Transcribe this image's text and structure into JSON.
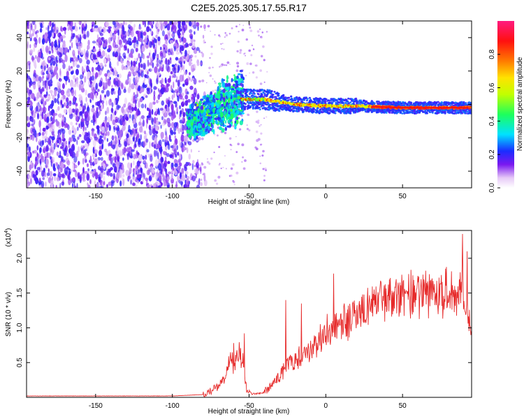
{
  "title": "C2E5.2025.305.17.55.R17",
  "colorbar_label": "Normalized spectral amplitude",
  "chart_data": [
    {
      "type": "heatmap",
      "name": "spectrogram",
      "xlabel": "Height of straight line (km)",
      "ylabel": "Frequency (Hz)",
      "xlim": [
        -195,
        95
      ],
      "ylim": [
        -50,
        50
      ],
      "xticks": [
        -150,
        -100,
        -50,
        0,
        50
      ],
      "yticks": [
        -40,
        -20,
        0,
        20,
        40
      ],
      "colorbar": {
        "label": "Normalized spectral amplitude",
        "range": [
          0,
          1
        ],
        "ticks": [
          0.0,
          0.2,
          0.4,
          0.6,
          0.8
        ]
      },
      "regions": [
        {
          "description": "broadband noise",
          "x": [
            -195,
            -83
          ],
          "freq": [
            -50,
            50
          ],
          "amplitude": 0.1
        },
        {
          "description": "onset scatter",
          "x": [
            -90,
            -55
          ],
          "freq_center": [
            -8,
            5
          ],
          "amplitude": 0.35
        },
        {
          "description": "signal track",
          "x": [
            -55,
            95
          ],
          "freq_center": [
            3,
            -2
          ],
          "amplitude": 0.85
        }
      ],
      "ridge": [
        {
          "x": -85,
          "freq": -10
        },
        {
          "x": -70,
          "freq": -2
        },
        {
          "x": -55,
          "freq": 3
        },
        {
          "x": -40,
          "freq": 3
        },
        {
          "x": -20,
          "freq": 0
        },
        {
          "x": 0,
          "freq": -1
        },
        {
          "x": 20,
          "freq": -1
        },
        {
          "x": 50,
          "freq": -2
        },
        {
          "x": 92,
          "freq": -2
        }
      ]
    },
    {
      "type": "line",
      "name": "snr",
      "xlabel": "Height of straight line (km)",
      "ylabel": "SNR (10 * v/v)",
      "yscale_label": "(x10",
      "yscale_exp": "4",
      "xlim": [
        -195,
        95
      ],
      "ylim": [
        0,
        2.4
      ],
      "xticks": [
        -150,
        -100,
        -50,
        0,
        50
      ],
      "yticks": [
        0.5,
        1.0,
        1.5,
        2.0
      ],
      "color": "#e62a2a",
      "envelope": [
        [
          -195,
          0.02
        ],
        [
          -100,
          0.02
        ],
        [
          -80,
          0.04
        ],
        [
          -72,
          0.12
        ],
        [
          -66,
          0.25
        ],
        [
          -62,
          0.55
        ],
        [
          -60,
          0.45
        ],
        [
          -57,
          0.65
        ],
        [
          -54,
          0.55
        ],
        [
          -52,
          0.15
        ],
        [
          -48,
          0.05
        ],
        [
          -42,
          0.06
        ],
        [
          -38,
          0.1
        ],
        [
          -34,
          0.22
        ],
        [
          -30,
          0.3
        ],
        [
          -26,
          0.45
        ],
        [
          -22,
          0.5
        ],
        [
          -18,
          0.55
        ],
        [
          -14,
          0.6
        ],
        [
          -10,
          0.68
        ],
        [
          -6,
          0.78
        ],
        [
          -2,
          0.88
        ],
        [
          2,
          0.93
        ],
        [
          6,
          0.98
        ],
        [
          10,
          1.05
        ],
        [
          14,
          1.1
        ],
        [
          18,
          1.15
        ],
        [
          22,
          1.22
        ],
        [
          26,
          1.3
        ],
        [
          30,
          1.35
        ],
        [
          35,
          1.4
        ],
        [
          40,
          1.42
        ],
        [
          45,
          1.45
        ],
        [
          50,
          1.47
        ],
        [
          55,
          1.48
        ],
        [
          60,
          1.48
        ],
        [
          65,
          1.49
        ],
        [
          70,
          1.5
        ],
        [
          75,
          1.5
        ],
        [
          80,
          1.52
        ],
        [
          84,
          1.55
        ],
        [
          88,
          1.58
        ],
        [
          90,
          1.4
        ],
        [
          92,
          1.2
        ],
        [
          95,
          1.05
        ]
      ],
      "peaks": [
        {
          "x": -60,
          "y": 0.78
        },
        {
          "x": -53,
          "y": 0.92
        },
        {
          "x": -26,
          "y": 1.4
        },
        {
          "x": -16,
          "y": 1.35
        },
        {
          "x": 1,
          "y": 1.2
        },
        {
          "x": 5,
          "y": 1.78
        },
        {
          "x": 12,
          "y": 1.35
        },
        {
          "x": 24,
          "y": 1.48
        },
        {
          "x": 62,
          "y": 1.7
        },
        {
          "x": 78,
          "y": 1.85
        },
        {
          "x": 89,
          "y": 2.35
        },
        {
          "x": 92,
          "y": 2.1
        }
      ]
    }
  ]
}
